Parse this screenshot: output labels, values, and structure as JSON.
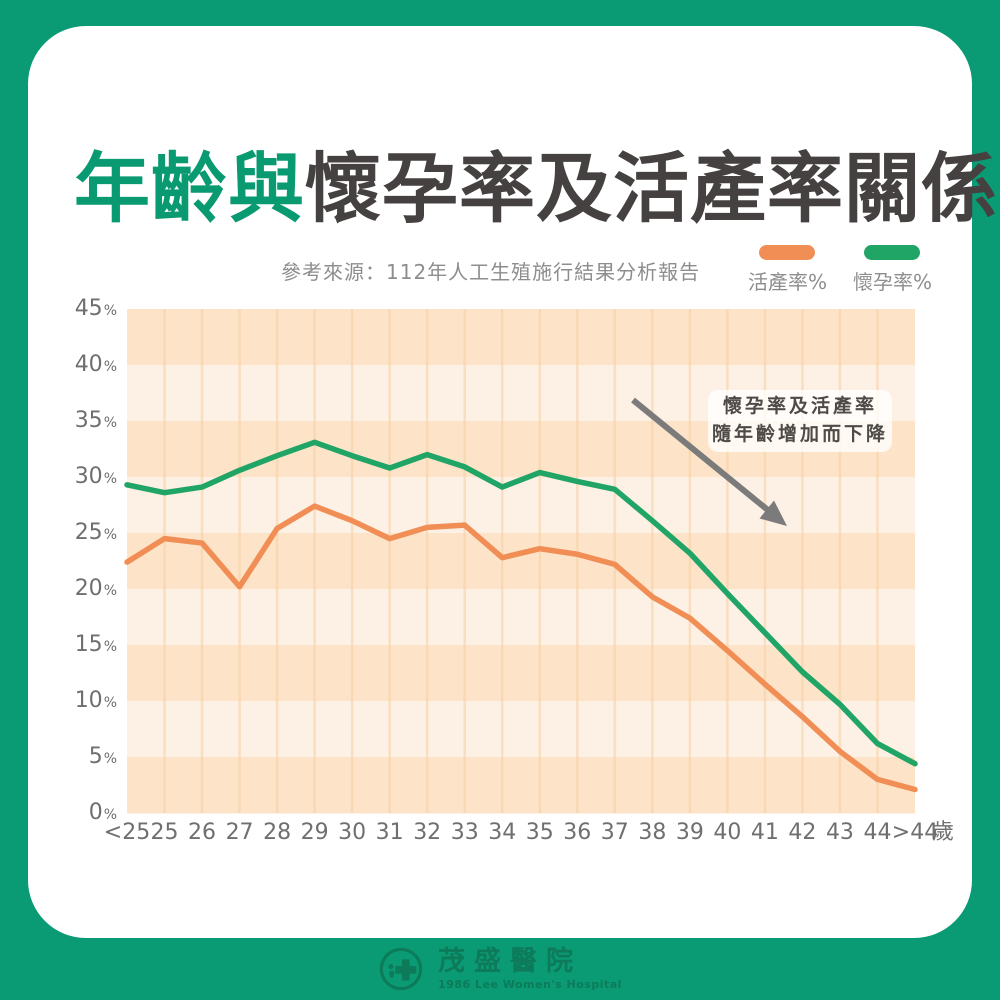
{
  "page": {
    "background_color": "#0a9b74",
    "card_color": "#ffffff"
  },
  "title": {
    "highlight": "年齡與",
    "rest": "懷孕率及活產率關係",
    "highlight_color": "#0a9a72",
    "rest_color": "#454140"
  },
  "source_note": "參考來源：112年人工生殖施行結果分析報告",
  "legend": [
    {
      "label": "活產率%",
      "color": "#f08e56"
    },
    {
      "label": "懷孕率%",
      "color": "#21a566"
    }
  ],
  "annotation": {
    "line1": "懷孕率及活產率",
    "line2": "隨年齡增加而下降"
  },
  "x_unit": "歲",
  "chart_data": {
    "type": "line",
    "title": "年齡與懷孕率及活產率關係",
    "xlabel": "歲 (age)",
    "ylabel": "%",
    "categories": [
      "<25",
      "25",
      "26",
      "27",
      "28",
      "29",
      "30",
      "31",
      "32",
      "33",
      "34",
      "35",
      "36",
      "37",
      "38",
      "39",
      "40",
      "41",
      "42",
      "43",
      "44",
      ">44"
    ],
    "series": [
      {
        "name": "活產率%",
        "color": "#f08e56",
        "values": [
          22.4,
          24.5,
          24.1,
          20.2,
          25.4,
          27.4,
          26.1,
          24.5,
          25.5,
          25.7,
          22.8,
          23.6,
          23.1,
          22.2,
          19.3,
          17.4,
          14.5,
          11.5,
          8.6,
          5.5,
          3.0,
          2.1
        ]
      },
      {
        "name": "懷孕率%",
        "color": "#21a566",
        "values": [
          29.3,
          28.6,
          29.1,
          30.6,
          31.9,
          33.1,
          31.9,
          30.8,
          32.0,
          30.9,
          29.1,
          30.4,
          29.6,
          28.9,
          26.1,
          23.2,
          19.6,
          16.1,
          12.6,
          9.7,
          6.2,
          4.4
        ]
      }
    ],
    "ylim": [
      0,
      45
    ],
    "y_ticks": [
      45,
      40,
      35,
      30,
      25,
      20,
      15,
      10,
      5,
      0
    ],
    "grid": "alternating horizontal bands + vertical category gridlines",
    "band_colors": [
      "#fde4c8",
      "#fdf0e4"
    ],
    "gridline_color": "#f7d2a8",
    "legend_position": "top-right",
    "annotation_text": "懷孕率及活產率隨年齡增加而下降"
  },
  "footer": {
    "hospital_name": "茂盛醫院",
    "tagline": "1986 Lee Women's Hospital",
    "color": "#0d7a5a"
  }
}
